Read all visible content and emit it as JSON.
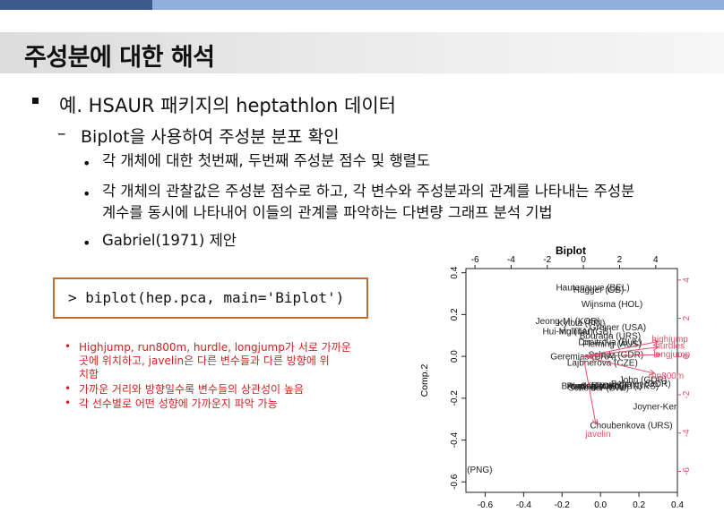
{
  "slide": {
    "title": "주성분에 대한 해석",
    "level1": "예. HSAUR 패키지의 heptathlon 데이터",
    "level2_dash": "–",
    "level2": "Biplot을 사용하여 주성분 분포 확인",
    "bullet_dot": "•",
    "level3": [
      "각 개체에 대한 첫번째, 두번째 주성분 점수 및 행렬도",
      "각 개체의 관찰값은 주성분 점수로 하고, 각 변수와 주성분과의 관계를 나타내는 주성분",
      "계수를 동시에 나타내어 이들의 관계를 파악하는 다변량 그래프 분석 기법",
      "Gabriel(1971) 제안"
    ],
    "code": "> biplot(hep.pca, main='Biplot')",
    "notes": [
      "Highjump, run800m, hurdle, longjump가 서로 가까운",
      "곳에 위치하고, javelin은 다른 변수들과 다른 방향에 위",
      "치함",
      "가까운 거리와 방향일수록 변수들의 상관성이 높음",
      "각 선수별로 어떤 성향에 가까운지 파악 가능"
    ],
    "colors": {
      "note_red": "#d01f1f",
      "code_border": "#c76b2a",
      "arrow_red": "#e0506a",
      "top_bar_dark": "#3d5a8c",
      "top_bar_light": "#8fb0dd"
    }
  },
  "chart_data": {
    "type": "scatter",
    "title": "Biplot",
    "ylabel": "Comp.2",
    "xlabel": "",
    "xlim": [
      -0.7,
      0.4
    ],
    "ylim": [
      -0.65,
      0.42
    ],
    "top_xlim": [
      -6.5,
      5.2
    ],
    "right_ylim": [
      -7.1,
      4.6
    ],
    "bottom_ticks": [
      "-0.6",
      "-0.4",
      "-0.2",
      "0.0",
      "0.2",
      "0.4"
    ],
    "left_ticks": [
      "-0.6",
      "-0.4",
      "-0.2",
      "0.0",
      "0.2",
      "0.4"
    ],
    "top_ticks": [
      "-6",
      "-4",
      "-2",
      "0",
      "2",
      "4"
    ],
    "right_ticks": [
      "-6",
      "-4",
      "-2",
      "0",
      "2",
      "4"
    ],
    "points": [
      {
        "label": "Hautenauve (BEL)",
        "x": -0.04,
        "y": 0.33
      },
      {
        "label": "Hagger (GB)",
        "x": -0.01,
        "y": 0.32
      },
      {
        "label": "Wijnsma (HOL)",
        "x": 0.06,
        "y": 0.25
      },
      {
        "label": "Jeong-Mi (KOR)",
        "x": -0.17,
        "y": 0.17
      },
      {
        "label": "Kytola (FIN)",
        "x": -0.1,
        "y": 0.16
      },
      {
        "label": "Greiner (USA)",
        "x": 0.09,
        "y": 0.14
      },
      {
        "label": "Hui-Ing (TAI)",
        "x": -0.17,
        "y": 0.12
      },
      {
        "label": "Mulliner (GB)",
        "x": -0.08,
        "y": 0.12
      },
      {
        "label": "Bouraga (URS)",
        "x": 0.05,
        "y": 0.1
      },
      {
        "label": "Dimitrova (BUL)",
        "x": 0.05,
        "y": 0.07
      },
      {
        "label": "Fleming (AUS)",
        "x": 0.06,
        "y": 0.06
      },
      {
        "label": "Geremias (BRA)",
        "x": -0.09,
        "y": 0.0
      },
      {
        "label": "Schulz (GDR)",
        "x": 0.08,
        "y": 0.01
      },
      {
        "label": "Lajbnerova (CZE)",
        "x": 0.01,
        "y": -0.03
      },
      {
        "label": "John (GDR)",
        "x": 0.22,
        "y": -0.11
      },
      {
        "label": "Behmer (GDR)",
        "x": 0.21,
        "y": -0.13
      },
      {
        "label": "Braun (FRG)",
        "x": -0.07,
        "y": -0.14
      },
      {
        "label": "Scheider (SWI)",
        "x": -0.01,
        "y": -0.15
      },
      {
        "label": "Ruotsalainen (FIN)",
        "x": 0.02,
        "y": -0.14
      },
      {
        "label": "Sablovskaite (URS)",
        "x": 0.1,
        "y": -0.14
      },
      {
        "label": "Yuping (CHN)",
        "x": -0.02,
        "y": -0.14
      },
      {
        "label": "Joyner-Kersee (USA)",
        "x": 0.39,
        "y": -0.24
      },
      {
        "label": "Choubenkova (URS)",
        "x": 0.16,
        "y": -0.33
      },
      {
        "label": "Launa (PNG)",
        "x": -0.7,
        "y": -0.54
      }
    ],
    "variables": [
      {
        "label": "highjump",
        "x": 4.2,
        "y": 0.8
      },
      {
        "label": "hurdles",
        "x": 4.2,
        "y": 0.5
      },
      {
        "label": "longjump",
        "x": 4.3,
        "y": 0.1
      },
      {
        "label": "run800m",
        "x": 4.0,
        "y": -0.9
      },
      {
        "label": "javelin",
        "x": 0.7,
        "y": -3.6
      }
    ]
  }
}
